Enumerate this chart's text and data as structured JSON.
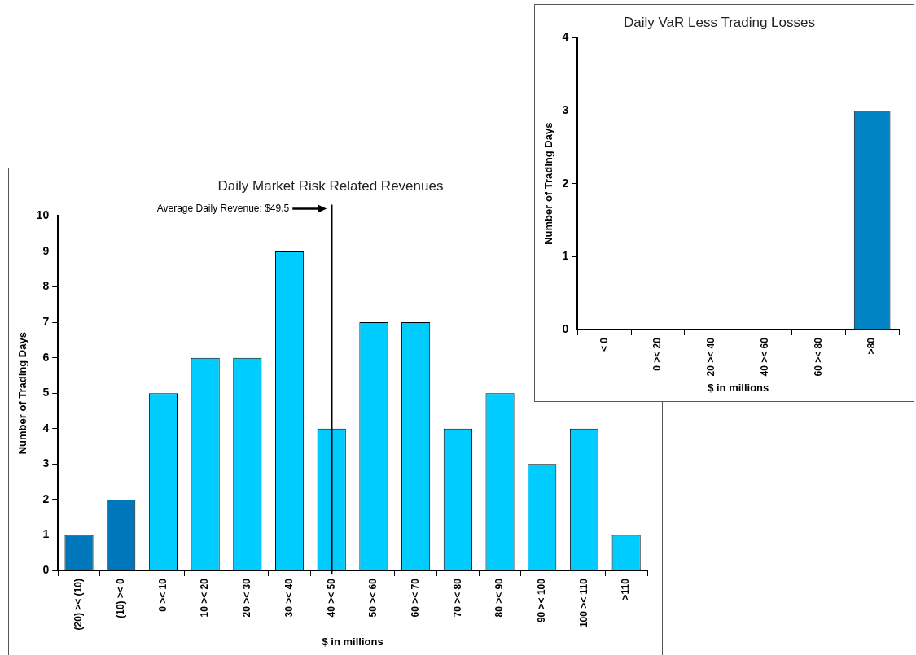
{
  "chart_data": [
    {
      "type": "bar",
      "title": "Daily Market Risk Related Revenues",
      "xlabel": "$ in millions",
      "ylabel": "Number of Trading Days",
      "categories": [
        "(20) >< (10)",
        "(10) >< 0",
        "0 >< 10",
        "10 >< 20",
        "20 >< 30",
        "30 >< 40",
        "40 >< 50",
        "50 >< 60",
        "60 >< 70",
        "70 >< 80",
        "80 >< 90",
        "90 >< 100",
        "100 >< 110",
        ">110"
      ],
      "values": [
        1,
        2,
        5,
        6,
        6,
        9,
        4,
        7,
        7,
        4,
        5,
        3,
        4,
        1
      ],
      "colors": [
        "#0077bb",
        "#0077bb",
        "#00ccff",
        "#00ccff",
        "#00ccff",
        "#00ccff",
        "#00ccff",
        "#00ccff",
        "#00ccff",
        "#00ccff",
        "#00ccff",
        "#00ccff",
        "#00ccff",
        "#00ccff"
      ],
      "ylim": [
        0,
        10
      ],
      "yticks": [
        0,
        1,
        2,
        3,
        4,
        5,
        6,
        7,
        8,
        9,
        10
      ],
      "grid": false,
      "legend": false,
      "ref_lines": [
        {
          "axis": "x",
          "value": "40 >< 50",
          "label": "Average Daily Revenue: $49.5",
          "color": "#000000"
        }
      ]
    },
    {
      "type": "bar",
      "title": "Daily VaR Less Trading Losses",
      "xlabel": "$ in millions",
      "ylabel": "Number of Trading Days",
      "categories": [
        "< 0",
        "0 >< 20",
        "20 >< 40",
        "40 >< 60",
        "60 >< 80",
        ">80"
      ],
      "values": [
        0,
        0,
        0,
        0,
        0,
        3
      ],
      "colors": [
        "#0084c4",
        "#0084c4",
        "#0084c4",
        "#0084c4",
        "#0084c4",
        "#0084c4"
      ],
      "ylim": [
        0,
        4
      ],
      "yticks": [
        0,
        1,
        2,
        3,
        4
      ],
      "grid": false,
      "legend": false
    }
  ]
}
